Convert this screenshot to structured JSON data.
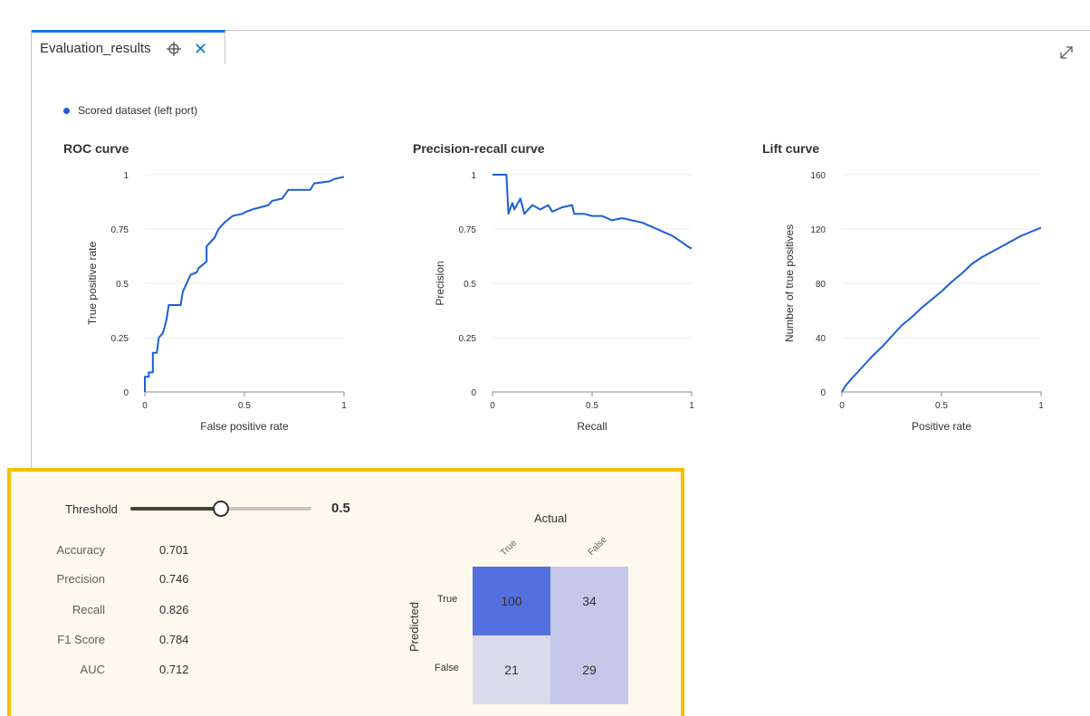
{
  "tab": {
    "title": "Evaluation_results",
    "close_glyph": "✕"
  },
  "legend": {
    "label": "Scored dataset (left port)",
    "color": "#1b5fd6"
  },
  "accent": {
    "tab_border": "#1a73e8",
    "line": "#1b5fd6",
    "panel_border": "#f5c000",
    "panel_bg": "#fdf9ee"
  },
  "chart_data": [
    {
      "type": "line",
      "title": "ROC curve",
      "xlabel": "False positive rate",
      "ylabel": "True positive rate",
      "xlim": [
        0,
        1
      ],
      "ylim": [
        0,
        1
      ],
      "xticks": [
        "0",
        "0.5",
        "1"
      ],
      "yticks": [
        "0",
        "0.25",
        "0.5",
        "0.75",
        "1"
      ],
      "grid": true,
      "points": [
        [
          0,
          0
        ],
        [
          0,
          0.07
        ],
        [
          0.02,
          0.07
        ],
        [
          0.02,
          0.09
        ],
        [
          0.04,
          0.09
        ],
        [
          0.04,
          0.18
        ],
        [
          0.06,
          0.18
        ],
        [
          0.07,
          0.25
        ],
        [
          0.09,
          0.27
        ],
        [
          0.1,
          0.3
        ],
        [
          0.11,
          0.34
        ],
        [
          0.12,
          0.4
        ],
        [
          0.18,
          0.4
        ],
        [
          0.19,
          0.46
        ],
        [
          0.21,
          0.5
        ],
        [
          0.23,
          0.54
        ],
        [
          0.26,
          0.55
        ],
        [
          0.27,
          0.57
        ],
        [
          0.31,
          0.6
        ],
        [
          0.31,
          0.67
        ],
        [
          0.33,
          0.69
        ],
        [
          0.35,
          0.71
        ],
        [
          0.37,
          0.75
        ],
        [
          0.4,
          0.78
        ],
        [
          0.44,
          0.81
        ],
        [
          0.49,
          0.82
        ],
        [
          0.51,
          0.83
        ],
        [
          0.54,
          0.84
        ],
        [
          0.58,
          0.85
        ],
        [
          0.62,
          0.86
        ],
        [
          0.64,
          0.88
        ],
        [
          0.69,
          0.89
        ],
        [
          0.72,
          0.93
        ],
        [
          0.83,
          0.93
        ],
        [
          0.85,
          0.96
        ],
        [
          0.93,
          0.97
        ],
        [
          0.95,
          0.98
        ],
        [
          1,
          0.99
        ]
      ]
    },
    {
      "type": "line",
      "title": "Precision-recall curve",
      "xlabel": "Recall",
      "ylabel": "Precision",
      "xlim": [
        0,
        1
      ],
      "ylim": [
        0,
        1
      ],
      "xticks": [
        "0",
        "0.5",
        "1"
      ],
      "yticks": [
        "0",
        "0.25",
        "0.5",
        "0.75",
        "1"
      ],
      "grid": true,
      "points": [
        [
          0,
          1
        ],
        [
          0.07,
          1
        ],
        [
          0.08,
          0.82
        ],
        [
          0.1,
          0.87
        ],
        [
          0.11,
          0.84
        ],
        [
          0.14,
          0.89
        ],
        [
          0.16,
          0.82
        ],
        [
          0.2,
          0.86
        ],
        [
          0.24,
          0.84
        ],
        [
          0.28,
          0.86
        ],
        [
          0.3,
          0.83
        ],
        [
          0.35,
          0.85
        ],
        [
          0.4,
          0.86
        ],
        [
          0.41,
          0.82
        ],
        [
          0.46,
          0.82
        ],
        [
          0.5,
          0.81
        ],
        [
          0.55,
          0.81
        ],
        [
          0.6,
          0.79
        ],
        [
          0.65,
          0.8
        ],
        [
          0.7,
          0.79
        ],
        [
          0.75,
          0.78
        ],
        [
          0.8,
          0.76
        ],
        [
          0.85,
          0.74
        ],
        [
          0.9,
          0.72
        ],
        [
          0.95,
          0.69
        ],
        [
          0.98,
          0.67
        ],
        [
          1,
          0.66
        ]
      ]
    },
    {
      "type": "line",
      "title": "Lift curve",
      "xlabel": "Positive rate",
      "ylabel": "Number of true positives",
      "xlim": [
        0,
        1
      ],
      "ylim": [
        0,
        160
      ],
      "xticks": [
        "0",
        "0.5",
        "1"
      ],
      "yticks": [
        "0",
        "40",
        "80",
        "120",
        "160"
      ],
      "grid": true,
      "points": [
        [
          0,
          0
        ],
        [
          0.02,
          5
        ],
        [
          0.05,
          10
        ],
        [
          0.1,
          18
        ],
        [
          0.15,
          26
        ],
        [
          0.2,
          33
        ],
        [
          0.25,
          41
        ],
        [
          0.3,
          49
        ],
        [
          0.35,
          55
        ],
        [
          0.4,
          62
        ],
        [
          0.45,
          68
        ],
        [
          0.5,
          74
        ],
        [
          0.55,
          81
        ],
        [
          0.6,
          87
        ],
        [
          0.65,
          94
        ],
        [
          0.7,
          99
        ],
        [
          0.75,
          103
        ],
        [
          0.8,
          107
        ],
        [
          0.85,
          111
        ],
        [
          0.9,
          115
        ],
        [
          0.95,
          118
        ],
        [
          1,
          121
        ]
      ]
    }
  ],
  "threshold": {
    "label": "Threshold",
    "value": "0.5",
    "fraction": 0.5
  },
  "metrics": [
    {
      "label": "Accuracy",
      "value": "0.701"
    },
    {
      "label": "Precision",
      "value": "0.746"
    },
    {
      "label": "Recall",
      "value": "0.826"
    },
    {
      "label": "F1 Score",
      "value": "0.784"
    },
    {
      "label": "AUC",
      "value": "0.712"
    }
  ],
  "confusion": {
    "actual_label": "Actual",
    "predicted_label": "Predicted",
    "columns": [
      "True",
      "False"
    ],
    "rows": [
      "True",
      "False"
    ],
    "cells": [
      [
        "100",
        "34"
      ],
      [
        "21",
        "29"
      ]
    ],
    "colors": [
      [
        "#5470de",
        "#c6c8ea"
      ],
      [
        "#dadbea",
        "#c6c8ea"
      ]
    ]
  }
}
